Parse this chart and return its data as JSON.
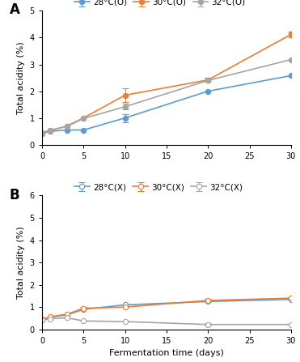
{
  "x": [
    0,
    1,
    3,
    5,
    10,
    20,
    30
  ],
  "panel_A": {
    "title": "A",
    "ylabel": "Total acidity (%)",
    "ylim": [
      0.0,
      5.0
    ],
    "yticks": [
      0.0,
      1.0,
      2.0,
      3.0,
      4.0,
      5.0
    ],
    "xlim": [
      0,
      30
    ],
    "xticks": [
      0,
      5,
      10,
      15,
      20,
      25,
      30
    ],
    "series": [
      {
        "label": "28°C(O)",
        "color": "#5B9BD5",
        "values": [
          0.42,
          0.5,
          0.55,
          0.55,
          1.0,
          2.0,
          2.58
        ],
        "errors": [
          0.0,
          0.0,
          0.0,
          0.0,
          0.15,
          0.0,
          0.0
        ],
        "marker": "o",
        "fillstyle": "full"
      },
      {
        "label": "30°C(O)",
        "color": "#ED7D31",
        "values": [
          0.45,
          0.52,
          0.7,
          1.0,
          1.85,
          2.42,
          4.12
        ],
        "errors": [
          0.0,
          0.0,
          0.0,
          0.0,
          0.25,
          0.07,
          0.12
        ],
        "marker": "o",
        "fillstyle": "full"
      },
      {
        "label": "32°C(O)",
        "color": "#A5A5A5",
        "values": [
          0.45,
          0.55,
          0.68,
          0.98,
          1.42,
          2.4,
          3.18
        ],
        "errors": [
          0.0,
          0.0,
          0.0,
          0.0,
          0.1,
          0.05,
          0.0
        ],
        "marker": "o",
        "fillstyle": "full"
      }
    ]
  },
  "panel_B": {
    "title": "B",
    "ylabel": "Total acidity (%)",
    "xlabel": "Fermentation time (days)",
    "ylim": [
      0.0,
      6.0
    ],
    "yticks": [
      0.0,
      1.0,
      2.0,
      3.0,
      4.0,
      5.0,
      6.0
    ],
    "xlim": [
      0,
      30
    ],
    "xticks": [
      0,
      5,
      10,
      15,
      20,
      25,
      30
    ],
    "series": [
      {
        "label": "28°C(X)",
        "color": "#5B9BD5",
        "values": [
          0.42,
          0.55,
          0.65,
          0.9,
          1.1,
          1.25,
          1.35
        ],
        "errors": [
          0.0,
          0.0,
          0.0,
          0.0,
          0.0,
          0.0,
          0.0
        ],
        "marker": "o",
        "fillstyle": "none"
      },
      {
        "label": "30°C(X)",
        "color": "#ED7D31",
        "values": [
          0.45,
          0.57,
          0.68,
          0.95,
          1.0,
          1.3,
          1.4
        ],
        "errors": [
          0.0,
          0.0,
          0.0,
          0.05,
          0.0,
          0.07,
          0.05
        ],
        "marker": "o",
        "fillstyle": "none"
      },
      {
        "label": "32°C(X)",
        "color": "#A5A5A5",
        "values": [
          0.42,
          0.48,
          0.52,
          0.38,
          0.35,
          0.22,
          0.22
        ],
        "errors": [
          0.0,
          0.0,
          0.0,
          0.0,
          0.0,
          0.05,
          0.0
        ],
        "marker": "o",
        "fillstyle": "none"
      }
    ]
  },
  "background_color": "#FFFFFF",
  "spine_color": "#000000",
  "tick_fontsize": 7,
  "label_fontsize": 8,
  "legend_fontsize": 7.5,
  "panel_label_fontsize": 12,
  "linewidth": 1.2,
  "markersize": 4.5,
  "capsize": 3,
  "elinewidth": 0.8
}
